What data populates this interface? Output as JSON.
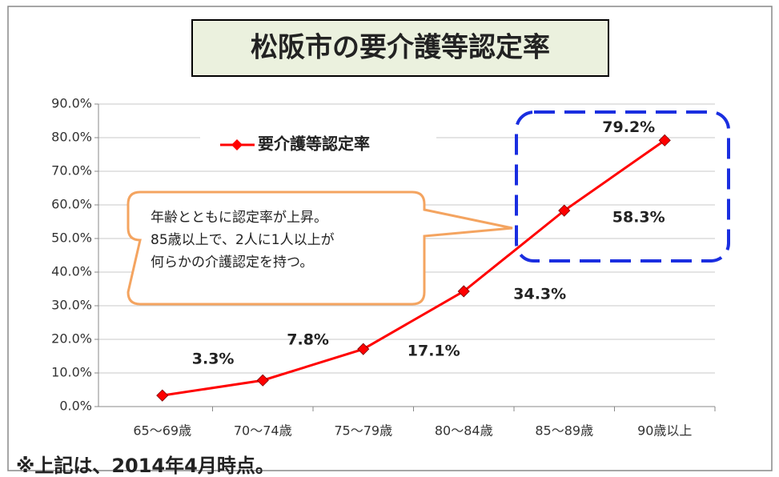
{
  "chart_data": {
    "type": "line",
    "title": "松阪市の要介護等認定率",
    "categories": [
      "65～69歳",
      "70～74歳",
      "75～79歳",
      "80～84歳",
      "85～89歳",
      "90歳以上"
    ],
    "series": [
      {
        "name": "要介護等認定率",
        "color": "#ff0000",
        "values": [
          3.3,
          7.8,
          17.1,
          34.3,
          58.3,
          79.2
        ],
        "value_labels": [
          "3.3%",
          "7.8%",
          "17.1%",
          "34.3%",
          "58.3%",
          "79.2%"
        ]
      }
    ],
    "ylim": [
      0,
      90
    ],
    "yticks": [
      {
        "value": 0,
        "label": "0.0%"
      },
      {
        "value": 10,
        "label": "10.0%"
      },
      {
        "value": 20,
        "label": "20.0%"
      },
      {
        "value": 30,
        "label": "30.0%"
      },
      {
        "value": 40,
        "label": "40.0%"
      },
      {
        "value": 50,
        "label": "50.0%"
      },
      {
        "value": 60,
        "label": "60.0%"
      },
      {
        "value": 70,
        "label": "70.0%"
      },
      {
        "value": 80,
        "label": "80.0%"
      },
      {
        "value": 90,
        "label": "90.0%"
      }
    ],
    "grid": true,
    "annotation": [
      "年齢とともに認定率が上昇。",
      "85歳以上で、2人に1人以上が",
      "何らかの介護認定を持つ。"
    ],
    "footnote": "※上記は、2014年4月時点。"
  }
}
